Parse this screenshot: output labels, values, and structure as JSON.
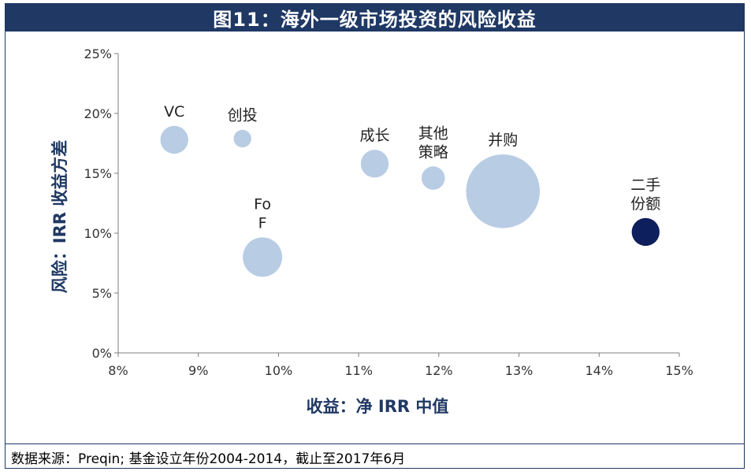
{
  "header": {
    "title": "图11：海外一级市场投资的风险收益"
  },
  "footer": {
    "source": "数据来源：Preqin; 基金设立年份2004-2014，截止至2017年6月"
  },
  "colors": {
    "brand": "#1f3864",
    "bubble_light": "#b8cce4",
    "bubble_dark": "#0d1f5c",
    "axis": "#7f7f7f"
  },
  "chart_data": {
    "type": "scatter",
    "title": "图11：海外一级市场投资的风险收益",
    "xlabel": "收益：净 IRR 中值",
    "ylabel": "风险：IRR 收益方差",
    "xlim": [
      8,
      15
    ],
    "ylim": [
      0,
      25
    ],
    "x_ticks": [
      "8%",
      "9%",
      "10%",
      "11%",
      "12%",
      "13%",
      "14%",
      "15%"
    ],
    "y_ticks": [
      "0%",
      "5%",
      "10%",
      "15%",
      "20%",
      "25%"
    ],
    "points": [
      {
        "label": "VC",
        "x": 8.7,
        "y": 17.8,
        "size": 2.0,
        "highlight": false
      },
      {
        "label": "创投",
        "x": 9.55,
        "y": 17.9,
        "size": 0.8,
        "highlight": false
      },
      {
        "label": "FoF",
        "x": 9.8,
        "y": 8.0,
        "size": 4.0,
        "highlight": false
      },
      {
        "label": "成长",
        "x": 11.2,
        "y": 15.8,
        "size": 2.0,
        "highlight": false
      },
      {
        "label": "其他策略",
        "x": 11.93,
        "y": 14.6,
        "size": 1.4,
        "highlight": false
      },
      {
        "label": "并购",
        "x": 12.8,
        "y": 13.5,
        "size": 14.0,
        "highlight": false
      },
      {
        "label": "二手份额",
        "x": 14.58,
        "y": 10.1,
        "size": 2.0,
        "highlight": true
      }
    ]
  }
}
